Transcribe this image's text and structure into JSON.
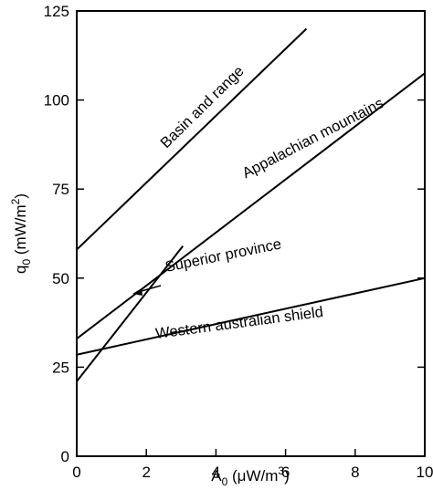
{
  "chart_data": {
    "type": "line",
    "xlabel": "A0 (μW/m3)",
    "ylabel": "q0 (mW/m2)",
    "xlim": [
      0,
      10
    ],
    "ylim": [
      0,
      125
    ],
    "x_ticks": [
      "0",
      "2",
      "4",
      "6",
      "8",
      "10"
    ],
    "y_ticks": [
      "0",
      "25",
      "50",
      "75",
      "100",
      "125"
    ],
    "grid": false,
    "series": [
      {
        "name": "Basin and range",
        "x": [
          0,
          6.6
        ],
        "y": [
          58,
          120
        ]
      },
      {
        "name": "Appalachian mountains",
        "x": [
          0,
          10
        ],
        "y": [
          33,
          107.5
        ]
      },
      {
        "name": "Superior province",
        "x": [
          0,
          3.05
        ],
        "y": [
          21,
          59
        ]
      },
      {
        "name": "Western australian shield",
        "x": [
          0,
          10
        ],
        "y": [
          28.5,
          50
        ]
      }
    ]
  }
}
